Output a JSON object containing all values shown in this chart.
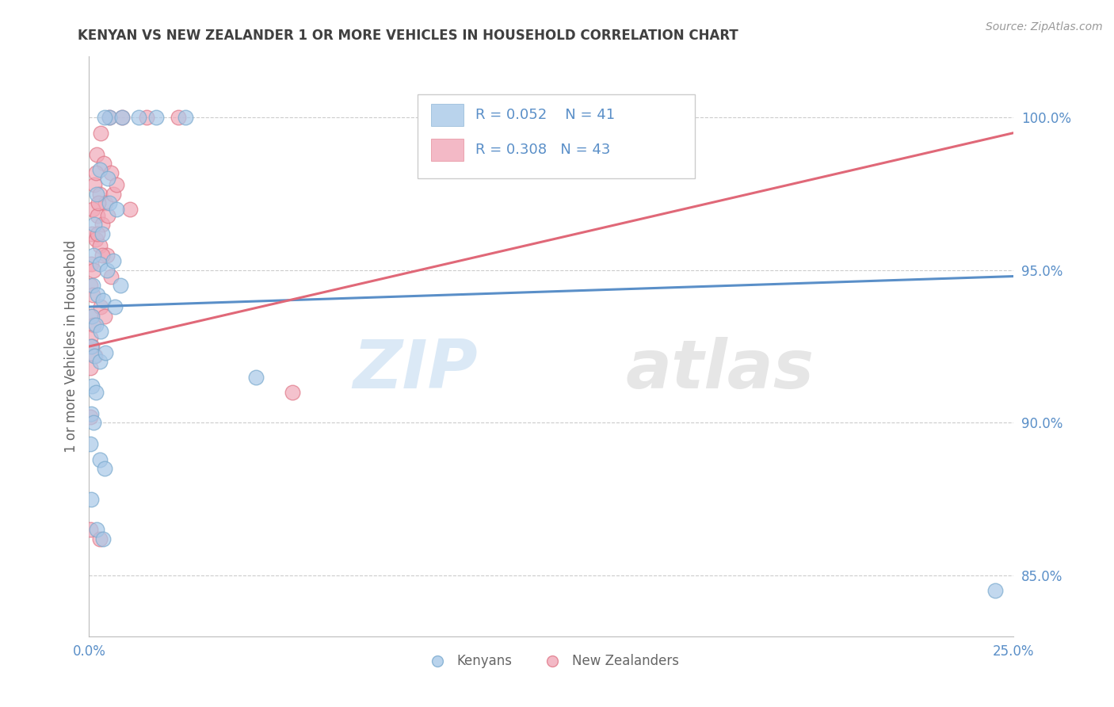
{
  "title": "KENYAN VS NEW ZEALANDER 1 OR MORE VEHICLES IN HOUSEHOLD CORRELATION CHART",
  "source": "Source: ZipAtlas.com",
  "ylabel": "1 or more Vehicles in Household",
  "xlim": [
    0.0,
    25.0
  ],
  "ylim": [
    83.0,
    102.0
  ],
  "yticks": [
    85.0,
    90.0,
    95.0,
    100.0
  ],
  "ytick_labels": [
    "85.0%",
    "90.0%",
    "95.0%",
    "100.0%"
  ],
  "xtick_labels": [
    "0.0%",
    "25.0%"
  ],
  "blue_color": "#a8c8e8",
  "pink_color": "#f0a8b8",
  "blue_edge_color": "#7aaace",
  "pink_edge_color": "#e07888",
  "blue_line_color": "#5a8fc8",
  "pink_line_color": "#e06878",
  "legend_blue_R": 0.052,
  "legend_blue_N": 41,
  "legend_pink_R": 0.308,
  "legend_pink_N": 43,
  "watermark": "ZIPatlas",
  "blue_scatter": [
    [
      0.55,
      100.0
    ],
    [
      0.9,
      100.0
    ],
    [
      1.35,
      100.0
    ],
    [
      1.8,
      100.0
    ],
    [
      2.6,
      100.0
    ],
    [
      0.42,
      100.0
    ],
    [
      0.3,
      98.3
    ],
    [
      0.5,
      98.0
    ],
    [
      0.2,
      97.5
    ],
    [
      0.55,
      97.2
    ],
    [
      0.75,
      97.0
    ],
    [
      0.15,
      96.5
    ],
    [
      0.35,
      96.2
    ],
    [
      0.12,
      95.5
    ],
    [
      0.28,
      95.2
    ],
    [
      0.48,
      95.0
    ],
    [
      0.65,
      95.3
    ],
    [
      0.1,
      94.5
    ],
    [
      0.22,
      94.2
    ],
    [
      0.38,
      94.0
    ],
    [
      0.08,
      93.5
    ],
    [
      0.18,
      93.2
    ],
    [
      0.32,
      93.0
    ],
    [
      0.06,
      92.5
    ],
    [
      0.15,
      92.2
    ],
    [
      0.28,
      92.0
    ],
    [
      0.45,
      92.3
    ],
    [
      0.08,
      91.2
    ],
    [
      0.18,
      91.0
    ],
    [
      0.05,
      90.3
    ],
    [
      0.12,
      90.0
    ],
    [
      0.04,
      89.3
    ],
    [
      0.3,
      88.8
    ],
    [
      0.42,
      88.5
    ],
    [
      0.05,
      87.5
    ],
    [
      0.2,
      86.5
    ],
    [
      0.38,
      86.2
    ],
    [
      4.5,
      91.5
    ],
    [
      24.5,
      84.5
    ],
    [
      0.7,
      93.8
    ],
    [
      0.85,
      94.5
    ]
  ],
  "pink_scatter": [
    [
      0.55,
      100.0
    ],
    [
      0.9,
      100.0
    ],
    [
      1.55,
      100.0
    ],
    [
      2.4,
      100.0
    ],
    [
      0.32,
      99.5
    ],
    [
      0.2,
      98.8
    ],
    [
      0.4,
      98.5
    ],
    [
      0.58,
      98.2
    ],
    [
      0.15,
      97.8
    ],
    [
      0.28,
      97.5
    ],
    [
      0.45,
      97.2
    ],
    [
      0.65,
      97.5
    ],
    [
      0.1,
      97.0
    ],
    [
      0.22,
      96.8
    ],
    [
      0.35,
      96.5
    ],
    [
      0.08,
      96.2
    ],
    [
      0.18,
      96.0
    ],
    [
      0.3,
      95.8
    ],
    [
      0.06,
      95.2
    ],
    [
      0.12,
      95.0
    ],
    [
      0.04,
      94.5
    ],
    [
      0.1,
      94.2
    ],
    [
      0.05,
      93.5
    ],
    [
      0.12,
      93.2
    ],
    [
      0.04,
      92.8
    ],
    [
      0.08,
      92.5
    ],
    [
      0.16,
      92.2
    ],
    [
      0.04,
      91.8
    ],
    [
      0.04,
      90.2
    ],
    [
      0.04,
      86.5
    ],
    [
      0.28,
      86.2
    ],
    [
      5.5,
      91.0
    ],
    [
      0.75,
      97.8
    ],
    [
      1.1,
      97.0
    ],
    [
      0.48,
      95.5
    ],
    [
      0.58,
      94.8
    ],
    [
      0.32,
      93.8
    ],
    [
      0.42,
      93.5
    ],
    [
      0.22,
      96.2
    ],
    [
      0.35,
      95.5
    ],
    [
      0.18,
      98.2
    ],
    [
      0.25,
      97.2
    ],
    [
      0.5,
      96.8
    ]
  ],
  "blue_trend_x": [
    0.0,
    25.0
  ],
  "blue_trend_y": [
    93.8,
    94.8
  ],
  "pink_trend_x": [
    0.0,
    25.0
  ],
  "pink_trend_y": [
    92.5,
    99.5
  ],
  "background_color": "#ffffff",
  "grid_color": "#cccccc",
  "title_color": "#404040",
  "axis_label_color": "#666666",
  "tick_label_color": "#5a8fc8",
  "source_color": "#999999",
  "dot_size": 180
}
